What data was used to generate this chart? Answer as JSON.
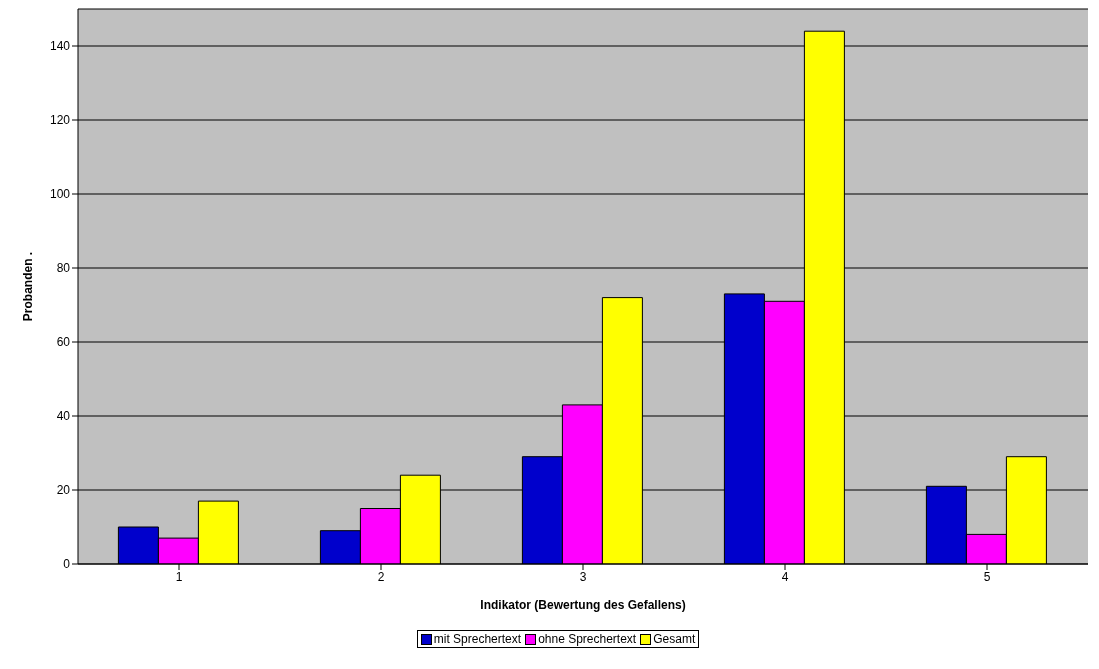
{
  "chart_data": {
    "type": "bar",
    "xlabel": "Indikator (Bewertung des Gefallens)",
    "ylabel": "Probanden .",
    "categories": [
      "1",
      "2",
      "3",
      "4",
      "5"
    ],
    "series": [
      {
        "name": "mit Sprechertext",
        "color": "#0000cc",
        "values": [
          10,
          9,
          29,
          73,
          21
        ]
      },
      {
        "name": "ohne Sprechertext",
        "color": "#ff00ff",
        "values": [
          7,
          15,
          43,
          71,
          8
        ]
      },
      {
        "name": "Gesamt",
        "color": "#ffff00",
        "values": [
          17,
          24,
          72,
          144,
          29
        ]
      }
    ],
    "ylim": [
      0,
      150
    ],
    "yticks": [
      0,
      20,
      40,
      60,
      80,
      100,
      120,
      140
    ],
    "grid": "y",
    "legend": "bottom"
  }
}
